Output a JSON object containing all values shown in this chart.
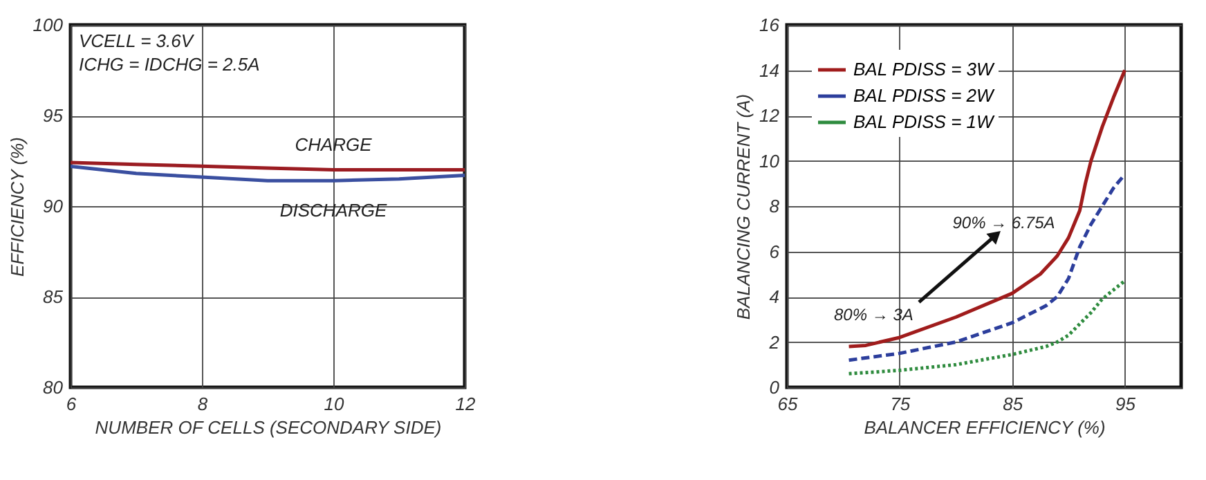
{
  "chart_data": [
    {
      "type": "line",
      "xlabel": "NUMBER OF CELLS (SECONDARY SIDE)",
      "ylabel": "EFFICIENCY (%)",
      "xlim": [
        6,
        12
      ],
      "xticks": [
        6,
        8,
        10,
        12
      ],
      "ylim": [
        80,
        100
      ],
      "yticks": [
        80,
        85,
        90,
        95,
        100
      ],
      "grid": true,
      "legend": false,
      "annotations": [
        "VCELL = 3.6V",
        "ICHG = IDCHG = 2.5A"
      ],
      "series": [
        {
          "name": "CHARGE",
          "color": "#9b1c22",
          "line_style": "solid",
          "x": [
            6,
            7,
            8,
            9,
            10,
            11,
            12
          ],
          "values": [
            92.4,
            92.3,
            92.2,
            92.1,
            92.0,
            92.0,
            92.0
          ]
        },
        {
          "name": "DISCHARGE",
          "color": "#3a4fa0",
          "line_style": "solid",
          "x": [
            6,
            7,
            8,
            9,
            10,
            11,
            12
          ],
          "values": [
            92.2,
            91.8,
            91.6,
            91.4,
            91.4,
            91.5,
            91.7
          ]
        }
      ]
    },
    {
      "type": "line",
      "xlabel": "BALANCER EFFICIENCY (%)",
      "ylabel": "BALANCING CURRENT (A)",
      "xlim": [
        65,
        100
      ],
      "xticks": [
        65,
        75,
        85,
        95
      ],
      "ylim": [
        0,
        16
      ],
      "yticks": [
        0,
        2,
        4,
        6,
        8,
        10,
        12,
        14,
        16
      ],
      "grid": true,
      "legend": "top left",
      "annotations": [
        "80% → 3A",
        "90% → 6.75A"
      ],
      "series": [
        {
          "name": "BAL PDISS = 3W",
          "color": "#a01c1c",
          "line_style": "solid",
          "x": [
            70.5,
            72,
            75,
            80,
            85,
            87.5,
            89,
            90,
            91,
            91.5,
            92,
            93,
            94,
            95
          ],
          "values": [
            1.8,
            1.85,
            2.2,
            3.1,
            4.15,
            5,
            5.8,
            6.6,
            7.8,
            9,
            10,
            11.5,
            12.8,
            14
          ]
        },
        {
          "name": "BAL PDISS = 2W",
          "color": "#2c3e9c",
          "line_style": "dashed",
          "x": [
            70.5,
            75,
            80,
            85,
            88,
            89,
            90,
            91,
            92,
            93,
            94,
            95
          ],
          "values": [
            1.2,
            1.5,
            2.0,
            2.85,
            3.6,
            4,
            4.8,
            6.2,
            7.2,
            8,
            8.8,
            9.4
          ]
        },
        {
          "name": "BAL PDISS = 1W",
          "color": "#2e8b3e",
          "line_style": "dotted",
          "x": [
            70.5,
            75,
            80,
            85,
            88,
            89,
            90,
            91,
            92,
            93,
            94,
            95
          ],
          "values": [
            0.6,
            0.75,
            1.0,
            1.45,
            1.8,
            2.0,
            2.3,
            2.8,
            3.3,
            3.9,
            4.3,
            4.7
          ]
        }
      ]
    }
  ]
}
